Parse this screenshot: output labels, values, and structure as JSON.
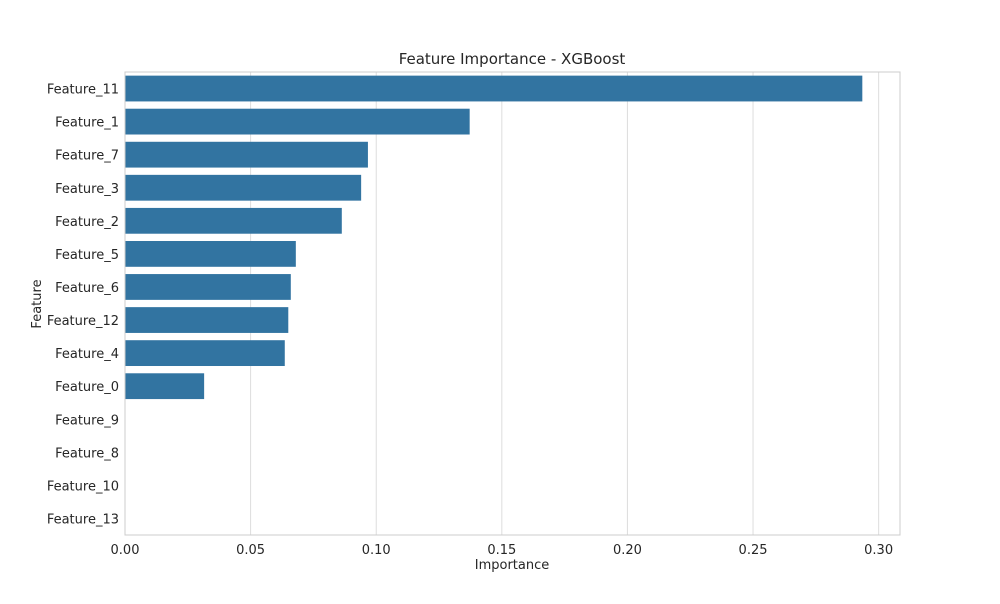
{
  "chart_data": {
    "type": "bar",
    "orientation": "horizontal",
    "title": "Feature Importance - XGBoost",
    "xlabel": "Importance",
    "ylabel": "Feature",
    "xlim": [
      0,
      0.3085
    ],
    "xticks": [
      0.0,
      0.05,
      0.1,
      0.15,
      0.2,
      0.25,
      0.3
    ],
    "xtick_labels": [
      "0.00",
      "0.05",
      "0.10",
      "0.15",
      "0.20",
      "0.25",
      "0.30"
    ],
    "grid": "x",
    "bar_color": "#3274a1",
    "categories": [
      "Feature_11",
      "Feature_1",
      "Feature_7",
      "Feature_3",
      "Feature_2",
      "Feature_5",
      "Feature_6",
      "Feature_12",
      "Feature_4",
      "Feature_0",
      "Feature_9",
      "Feature_8",
      "Feature_10",
      "Feature_13"
    ],
    "values": [
      0.2935,
      0.1372,
      0.0967,
      0.094,
      0.0863,
      0.068,
      0.066,
      0.065,
      0.0636,
      0.0315,
      0.0,
      0.0,
      0.0,
      0.0
    ]
  }
}
